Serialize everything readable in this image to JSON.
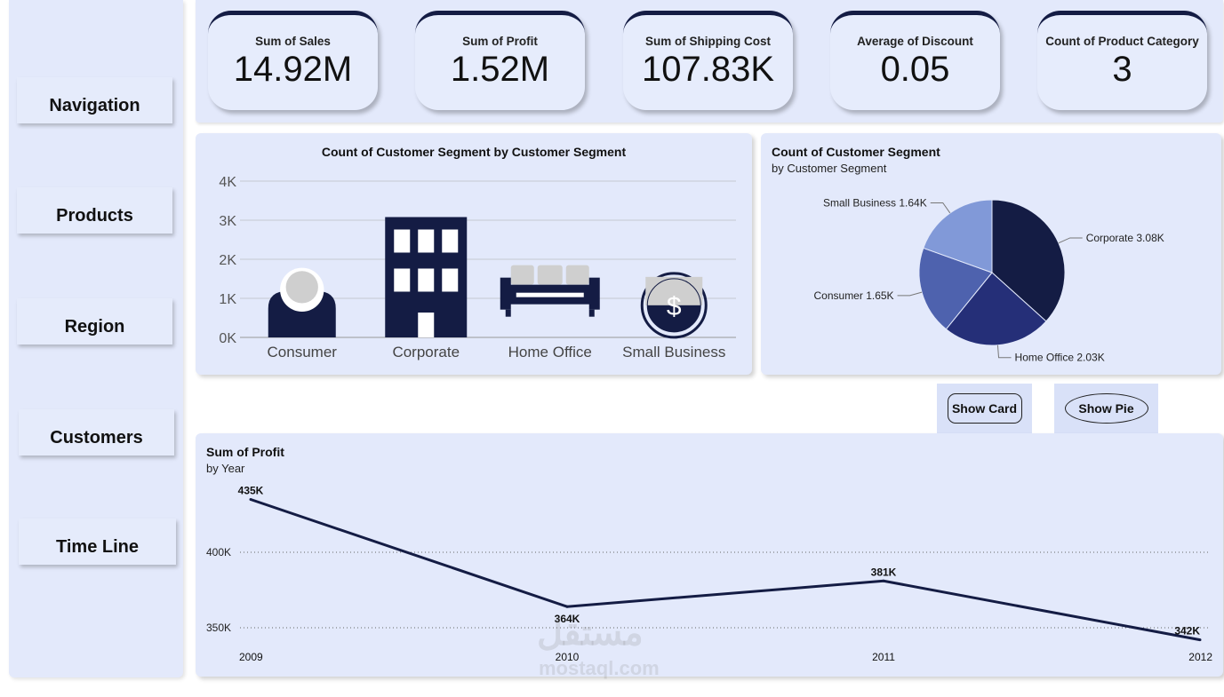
{
  "sidebar": {
    "items": [
      {
        "label": "Navigation"
      },
      {
        "label": "Products"
      },
      {
        "label": "Region"
      },
      {
        "label": "Customers"
      },
      {
        "label": "Time Line"
      }
    ]
  },
  "kpis": [
    {
      "label": "Sum of Sales",
      "value": "14.92M"
    },
    {
      "label": "Sum of Profit",
      "value": "1.52M"
    },
    {
      "label": "Sum of Shipping Cost",
      "value": "107.83K"
    },
    {
      "label": "Average of Discount",
      "value": "0.05"
    },
    {
      "label": "Count of Product Category",
      "value": "3"
    }
  ],
  "buttons": {
    "show_card": "Show Card",
    "show_pie": "Show Pie"
  },
  "watermark": {
    "arabic": "مستقل",
    "latin": "mostaql.com"
  },
  "colors": {
    "navy": "#141c44",
    "panel": "#e3e9fb",
    "icon_gray": "#cfcfcf"
  },
  "chart_data": [
    {
      "type": "bar",
      "title": "Count of Customer Segment by Customer Segment",
      "categories": [
        "Consumer",
        "Corporate",
        "Home Office",
        "Small Business"
      ],
      "values": [
        1650,
        3080,
        2030,
        1640
      ],
      "y_ticks": [
        "0K",
        "1K",
        "2K",
        "3K",
        "4K"
      ],
      "ylim": [
        0,
        4000
      ],
      "icons": [
        "person-icon",
        "building-icon",
        "sofa-icon",
        "dollar-coin-icon"
      ],
      "grid": true
    },
    {
      "type": "pie",
      "title": "Count of Customer Segment",
      "subtitle": "by Customer Segment",
      "slices": [
        {
          "name": "Corporate",
          "value": 3.08,
          "label": "Corporate 3.08K",
          "color": "#141c44"
        },
        {
          "name": "Home Office",
          "value": 2.03,
          "label": "Home Office 2.03K",
          "color": "#252f78"
        },
        {
          "name": "Consumer",
          "value": 1.65,
          "label": "Consumer 1.65K",
          "color": "#4e62ae"
        },
        {
          "name": "Small Business",
          "value": 1.64,
          "label": "Small Business 1.64K",
          "color": "#8199d8"
        }
      ]
    },
    {
      "type": "line",
      "title": "Sum of Profit",
      "subtitle": "by Year",
      "x": [
        "2009",
        "2010",
        "2011",
        "2012"
      ],
      "values": [
        435000,
        364000,
        381000,
        342000
      ],
      "point_labels": [
        "435K",
        "364K",
        "381K",
        "342K"
      ],
      "y_ticks": [
        {
          "value": 350000,
          "label": "350K"
        },
        {
          "value": 400000,
          "label": "400K"
        }
      ],
      "ylim": [
        340000,
        440000
      ],
      "grid": true
    }
  ]
}
